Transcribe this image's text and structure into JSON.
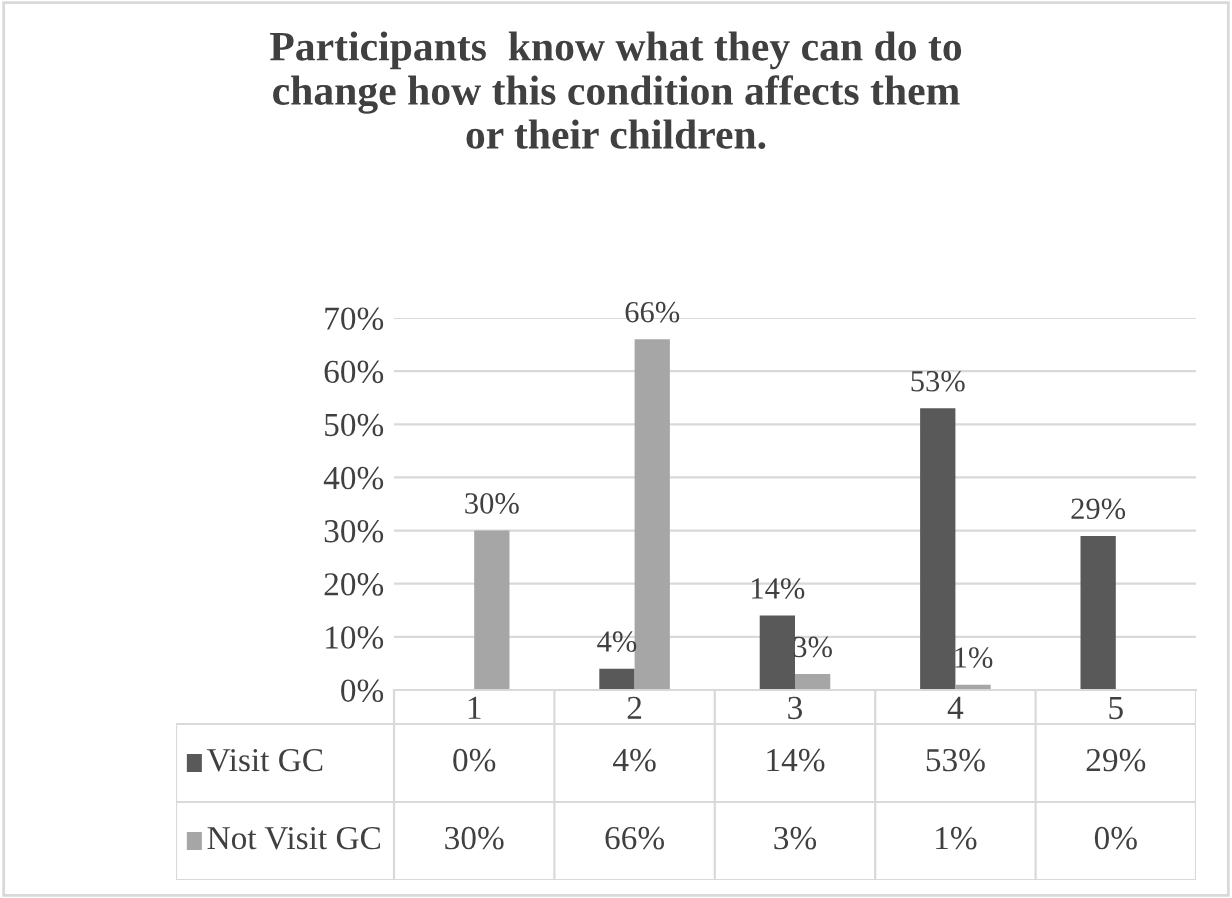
{
  "chart_data": {
    "type": "bar",
    "title": "Participants  know what they can do to\nchange how this condition affects them\nor their children.",
    "categories": [
      "1",
      "2",
      "3",
      "4",
      "5"
    ],
    "series": [
      {
        "name": "Visit GC",
        "color": "#595959",
        "values": [
          0,
          4,
          14,
          53,
          29
        ],
        "value_labels": [
          "0%",
          "4%",
          "14%",
          "53%",
          "29%"
        ]
      },
      {
        "name": "Not Visit GC",
        "color": "#a6a6a6",
        "values": [
          30,
          66,
          3,
          1,
          0
        ],
        "value_labels": [
          "30%",
          "66%",
          "3%",
          "1%",
          "0%"
        ]
      }
    ],
    "ylim": [
      0,
      70
    ],
    "yticks": [
      {
        "value": 0,
        "label": "0%"
      },
      {
        "value": 10,
        "label": "10%"
      },
      {
        "value": 20,
        "label": "20%"
      },
      {
        "value": 30,
        "label": "30%"
      },
      {
        "value": 40,
        "label": "40%"
      },
      {
        "value": 50,
        "label": "50%"
      },
      {
        "value": 60,
        "label": "60%"
      },
      {
        "value": 70,
        "label": "70%"
      }
    ],
    "grid": "y",
    "data_labels": true,
    "legend": "bottom"
  }
}
